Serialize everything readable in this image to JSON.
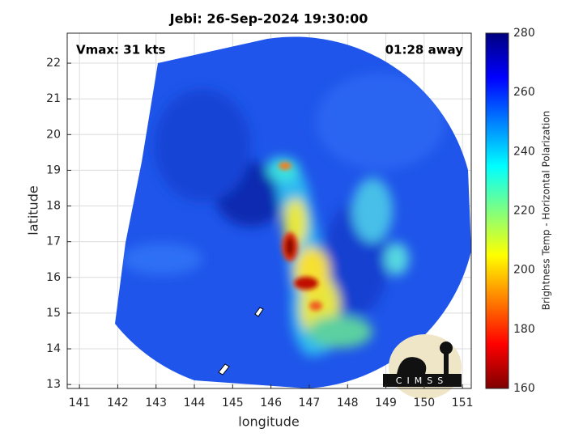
{
  "title": "Jebi: 26-Sep-2024 19:30:00",
  "annotations": {
    "intensity": "Vmax: 31 kts",
    "time_offset": "01:28 away"
  },
  "x_label": "longitude",
  "y_label": "latitude",
  "xlim": [
    140.68,
    151.23
  ],
  "xticks": [
    141,
    142,
    143,
    144,
    145,
    146,
    147,
    148,
    149,
    150,
    151
  ],
  "ylim": [
    12.89,
    22.84
  ],
  "yticks": [
    13,
    14,
    15,
    16,
    17,
    18,
    19,
    20,
    21,
    22
  ],
  "grid": true,
  "colorbar": {
    "label": "Brightness Temp - Horizontal Polarization",
    "lim": [
      160,
      280
    ],
    "ticks": [
      160,
      180,
      200,
      220,
      240,
      260,
      280
    ]
  },
  "logo": "CIMSS"
}
